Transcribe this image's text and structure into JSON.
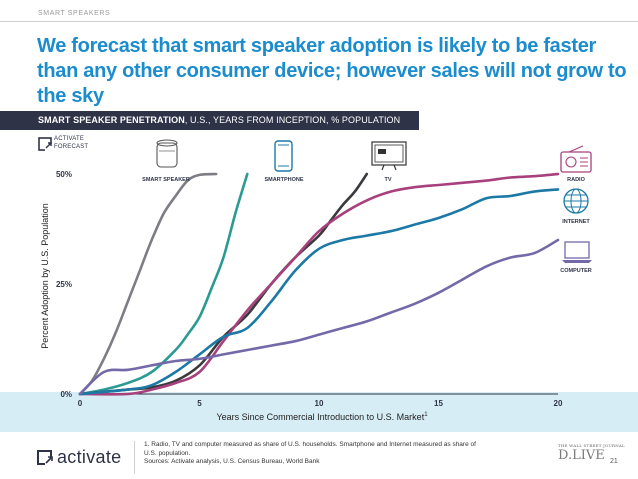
{
  "slide": {
    "section_tag": "SMART SPEAKERS",
    "headline": "We forecast that smart speaker adoption is likely to be faster than any other consumer device; however sales will not grow to the sky",
    "banner_bold": "SMART SPEAKER PENETRATION",
    "banner_rest": ", U.S., YEARS FROM INCEPTION, % POPULATION",
    "forecast_legend": [
      "ACTIVATE",
      "FORECAST"
    ],
    "footnote_lines": [
      "1. Radio, TV and computer measured as share of U.S. households. Smartphone and Internet measured as share of",
      "U.S. population.",
      "Sources: Activate analysis, U.S. Census Bureau, World Bank"
    ],
    "logo_text": "activate",
    "partner_small": "THE WALL STREET JOURNAL",
    "partner_big": "D.LIVE",
    "page_number": "21"
  },
  "colors": {
    "headline": "#1b8ccd",
    "banner": "#2f3348",
    "band": "#d7edf5"
  },
  "chart_data": {
    "type": "line",
    "title": "",
    "xlabel": "Years Since Commercial Introduction to U.S. Market",
    "xlabel_sup": "1",
    "ylabel": "Percent Adoption by U.S. Population",
    "xlim": [
      0,
      20
    ],
    "ylim": [
      0,
      50
    ],
    "xticks": [
      {
        "value": 0,
        "label": "0"
      },
      {
        "value": 5,
        "label": "5"
      },
      {
        "value": 10,
        "label": "10"
      },
      {
        "value": 15,
        "label": "15"
      },
      {
        "value": 20,
        "label": "20"
      }
    ],
    "yticks": [
      {
        "value": 0,
        "label": "0%"
      },
      {
        "value": 25,
        "label": "25%"
      },
      {
        "value": 50,
        "label": "50%"
      }
    ],
    "grid": false,
    "series": [
      {
        "name": "SMART SPEAKER",
        "color": "#7d7d85",
        "icon": "smart-speaker-icon",
        "label_side": "top",
        "x": [
          0,
          0.5,
          1,
          1.5,
          2,
          2.5,
          3,
          3.5,
          4,
          4.5,
          5,
          5.7
        ],
        "y": [
          0,
          3,
          8,
          14,
          21,
          28,
          35,
          41,
          45,
          48.5,
          49.8,
          50
        ]
      },
      {
        "name": "SMARTPHONE",
        "color": "#2a9a93",
        "icon": "smartphone-icon",
        "label_side": "top",
        "x": [
          0,
          1,
          2,
          3,
          4,
          4.5,
          5,
          5.5,
          6,
          6.5,
          7
        ],
        "y": [
          0,
          1,
          2.5,
          5,
          10,
          13.5,
          17.5,
          24,
          31,
          41,
          50
        ]
      },
      {
        "name": "TV",
        "color": "#3a3a3e",
        "icon": "tv-icon",
        "label_side": "top",
        "x": [
          0,
          1,
          2,
          3,
          4,
          5,
          6,
          7,
          8,
          9,
          10,
          10.5,
          11,
          11.5,
          12
        ],
        "y": [
          0,
          0.5,
          1,
          1.5,
          3,
          6.5,
          13,
          18,
          25,
          31,
          36,
          39.5,
          43,
          46,
          50
        ]
      },
      {
        "name": "RADIO",
        "color": "#a8407d",
        "icon": "radio-icon",
        "label_side": "right",
        "x": [
          0,
          2,
          3,
          4,
          5,
          6,
          7,
          8,
          9,
          10,
          11,
          12,
          13,
          14,
          15,
          16,
          17,
          18,
          19,
          20
        ],
        "y": [
          0,
          0,
          1,
          2.5,
          5,
          12,
          19,
          25,
          31,
          37,
          41,
          44,
          46,
          47,
          47.5,
          48,
          48.5,
          49.2,
          49.5,
          50
        ]
      },
      {
        "name": "INTERNET",
        "color": "#1c79a6",
        "icon": "globe-icon",
        "label_side": "right",
        "x": [
          0,
          2,
          3,
          4,
          5,
          6,
          7,
          8,
          9,
          10,
          11,
          12,
          13,
          14,
          15,
          16,
          17,
          18,
          19,
          20
        ],
        "y": [
          0,
          1,
          2,
          5,
          9,
          13,
          15,
          21,
          28,
          33,
          35,
          36,
          37,
          38.5,
          40,
          42,
          44.5,
          45,
          46,
          46.5
        ]
      },
      {
        "name": "COMPUTER",
        "color": "#7469a8",
        "icon": "laptop-icon",
        "label_side": "right",
        "x": [
          0,
          1,
          2,
          3,
          4,
          5,
          6,
          7,
          8,
          9,
          10,
          11,
          12,
          13,
          14,
          15,
          16,
          17,
          18,
          19,
          20
        ],
        "y": [
          0,
          5,
          5.5,
          6.5,
          7.5,
          8,
          9,
          10,
          11,
          12,
          13.5,
          15,
          16.5,
          18.5,
          20.5,
          23,
          26,
          29,
          31,
          32,
          35
        ]
      }
    ]
  }
}
